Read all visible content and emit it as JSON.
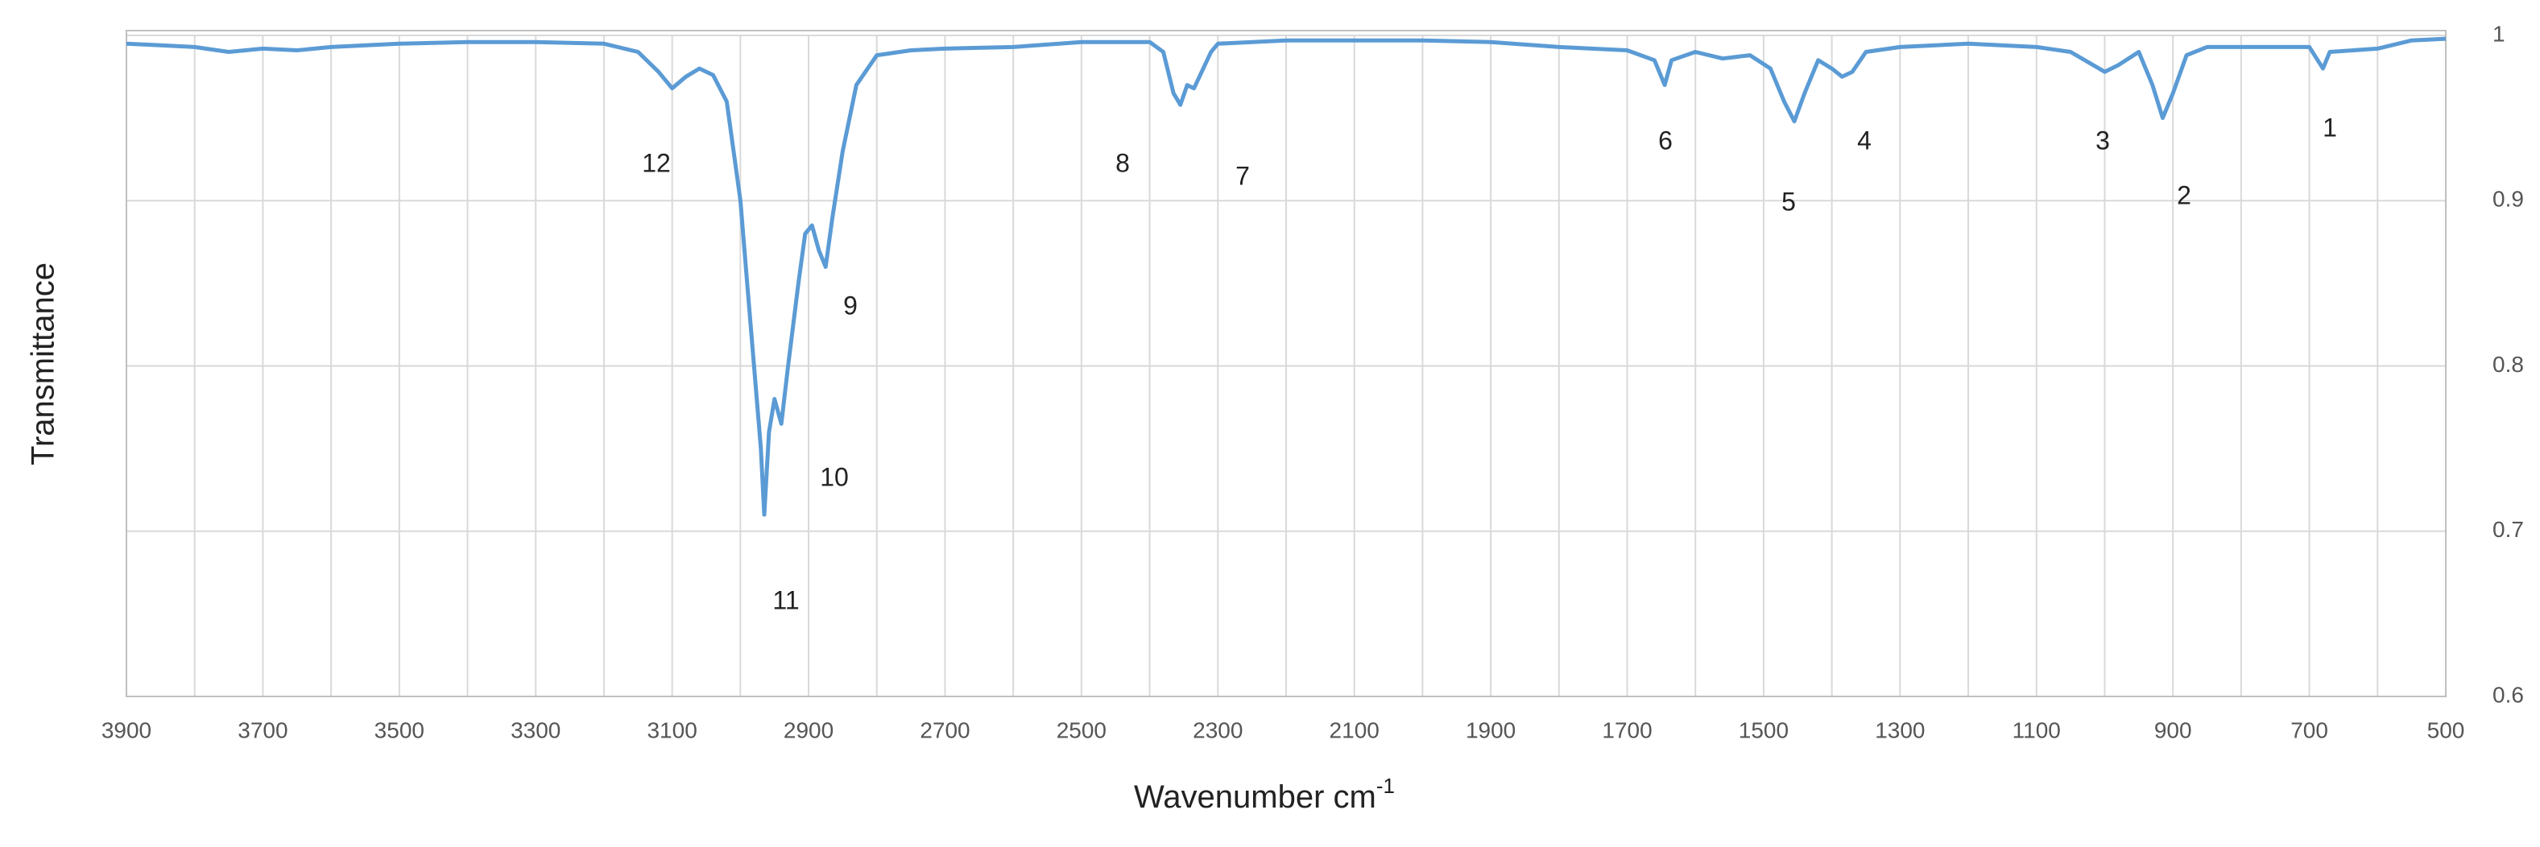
{
  "chart_data": {
    "type": "line",
    "xlabel": "Wavenumber cm",
    "xlabel_superscript": "-1",
    "ylabel": "Transmittance",
    "x": [
      3900,
      3850,
      3800,
      3750,
      3700,
      3650,
      3600,
      3500,
      3400,
      3300,
      3200,
      3150,
      3120,
      3100,
      3080,
      3060,
      3040,
      3020,
      3000,
      2990,
      2980,
      2970,
      2965,
      2958,
      2950,
      2940,
      2930,
      2915,
      2905,
      2895,
      2885,
      2875,
      2865,
      2850,
      2830,
      2800,
      2750,
      2700,
      2600,
      2500,
      2400,
      2380,
      2365,
      2355,
      2345,
      2335,
      2310,
      2300,
      2200,
      2000,
      1900,
      1800,
      1700,
      1660,
      1645,
      1635,
      1600,
      1560,
      1520,
      1490,
      1470,
      1455,
      1440,
      1420,
      1400,
      1385,
      1370,
      1350,
      1300,
      1200,
      1100,
      1050,
      1000,
      980,
      950,
      930,
      915,
      900,
      880,
      850,
      750,
      700,
      680,
      670,
      600,
      550,
      500
    ],
    "series": [
      {
        "color": "#5b9bd5",
        "values": [
          0.995,
          0.994,
          0.993,
          0.99,
          0.992,
          0.991,
          0.993,
          0.995,
          0.996,
          0.996,
          0.995,
          0.99,
          0.978,
          0.968,
          0.975,
          0.98,
          0.976,
          0.96,
          0.9,
          0.85,
          0.8,
          0.75,
          0.71,
          0.76,
          0.78,
          0.765,
          0.8,
          0.85,
          0.88,
          0.885,
          0.87,
          0.86,
          0.89,
          0.93,
          0.97,
          0.988,
          0.991,
          0.992,
          0.993,
          0.996,
          0.996,
          0.99,
          0.965,
          0.958,
          0.97,
          0.968,
          0.99,
          0.995,
          0.997,
          0.997,
          0.996,
          0.993,
          0.991,
          0.985,
          0.97,
          0.985,
          0.99,
          0.986,
          0.988,
          0.98,
          0.96,
          0.948,
          0.965,
          0.985,
          0.98,
          0.975,
          0.978,
          0.99,
          0.993,
          0.995,
          0.993,
          0.99,
          0.978,
          0.982,
          0.99,
          0.97,
          0.95,
          0.965,
          0.988,
          0.993,
          0.993,
          0.993,
          0.98,
          0.99,
          0.992,
          0.997,
          0.998
        ]
      }
    ],
    "xlim": [
      3900,
      500
    ],
    "xticks": [
      3900,
      3700,
      3500,
      3300,
      3100,
      2900,
      2700,
      2500,
      2300,
      2100,
      1900,
      1700,
      1500,
      1300,
      1100,
      900,
      700,
      500
    ],
    "x_minor_gridlines": [
      3800,
      3600,
      3400,
      3200,
      3000,
      2800,
      2600,
      2400,
      2200,
      2000,
      1800,
      1600,
      1400,
      1200,
      1000,
      800,
      600
    ],
    "ylim": [
      0.6,
      1
    ],
    "yticks": [
      0.6,
      0.7,
      0.8,
      0.9,
      1
    ],
    "y_axis_side": "right",
    "grid": true,
    "annotations": [
      "12",
      "11",
      "10",
      "9",
      "8",
      "7",
      "6",
      "5",
      "4",
      "3",
      "2",
      "1"
    ]
  }
}
